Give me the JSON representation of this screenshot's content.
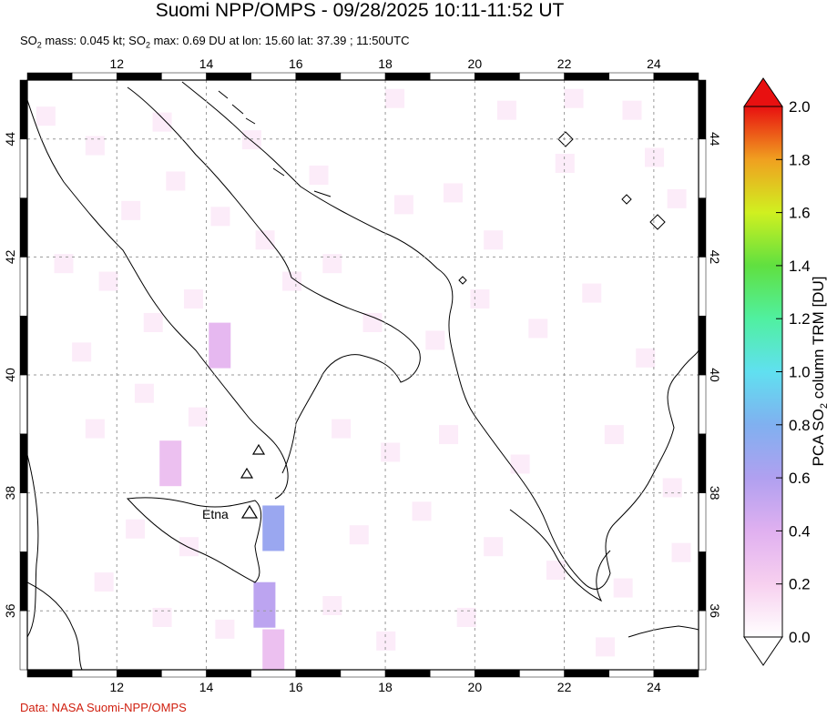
{
  "header": {
    "title": "Suomi NPP/OMPS - 09/28/2025 10:11-11:52 UT",
    "subtitle_prefix": "SO",
    "subtitle_mass": " mass: 0.045 kt; SO",
    "subtitle_rest": " max: 0.69 DU at lon: 15.60 lat: 37.39 ; 11:50UTC",
    "subscript": "2"
  },
  "map": {
    "lon_range": [
      10,
      25
    ],
    "lat_range": [
      35,
      45
    ],
    "lon_ticks": [
      "12",
      "14",
      "16",
      "18",
      "20",
      "22",
      "24"
    ],
    "lat_ticks": [
      "44",
      "42",
      "40",
      "38",
      "36"
    ],
    "grid": "dashed",
    "volcano_label": "Etna"
  },
  "colorbar": {
    "title_prefix": "PCA SO",
    "title_sub": "2",
    "title_suffix": " column TRM [DU]",
    "ticks": [
      "2.0",
      "1.8",
      "1.6",
      "1.4",
      "1.2",
      "1.0",
      "0.8",
      "0.6",
      "0.4",
      "0.2",
      "0.0"
    ],
    "colors": [
      "#ffffff",
      "#f7c6f0",
      "#c8a0f0",
      "#8fa8f0",
      "#60e0f0",
      "#60f0a0",
      "#60e040",
      "#d0f020",
      "#f0c020",
      "#f06010",
      "#e01010"
    ]
  },
  "credit": "Data: NASA Suomi-NPP/OMPS",
  "chart_data": {
    "type": "heatmap",
    "title": "Suomi NPP/OMPS - 09/28/2025 10:11-11:52 UT",
    "variable": "PCA SO2 column TRM [DU]",
    "value_range": [
      0.0,
      2.0
    ],
    "max_value": 0.69,
    "max_location": {
      "lon": 15.6,
      "lat": 37.39
    },
    "so2_mass_kt": 0.045,
    "time_of_max": "11:50UTC",
    "notable_pixels": [
      {
        "lon": 15.5,
        "lat": 37.4,
        "value": 0.69
      },
      {
        "lon": 15.3,
        "lat": 36.1,
        "value": 0.55
      },
      {
        "lon": 14.3,
        "lat": 40.5,
        "value": 0.35
      },
      {
        "lon": 13.2,
        "lat": 38.5,
        "value": 0.3
      },
      {
        "lon": 15.5,
        "lat": 35.3,
        "value": 0.3
      }
    ]
  }
}
